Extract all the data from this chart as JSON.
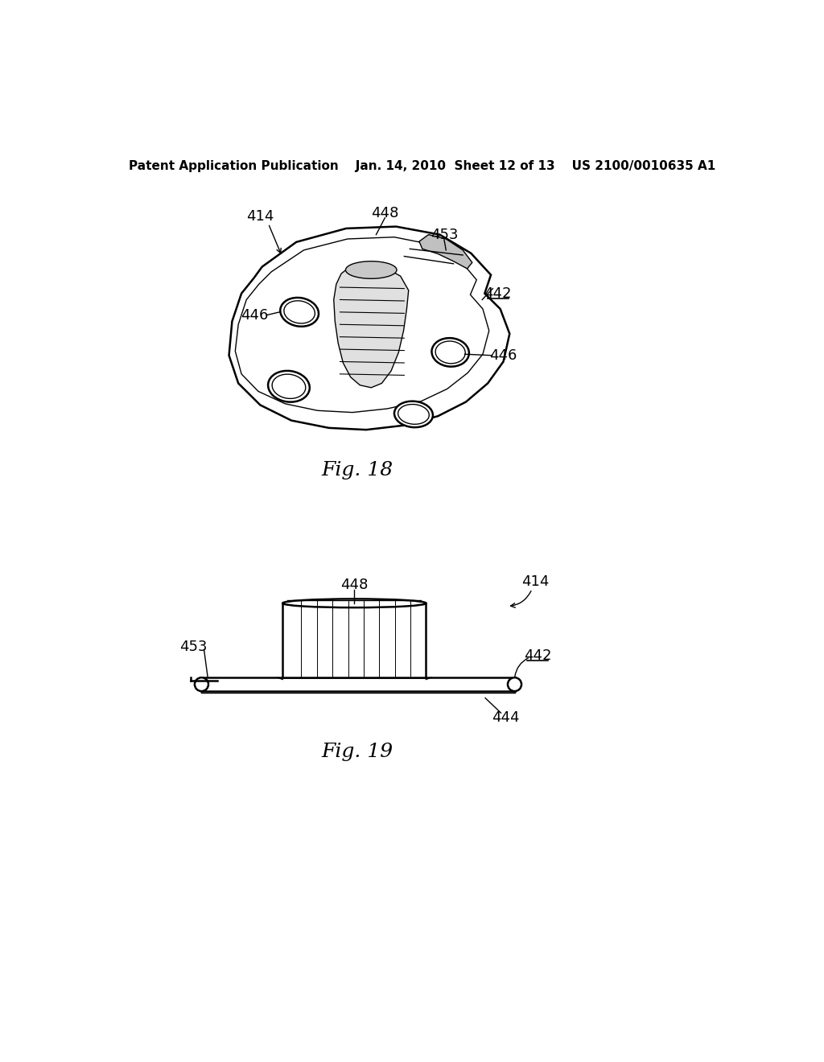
{
  "background_color": "#ffffff",
  "header_text": "Patent Application Publication    Jan. 14, 2010  Sheet 12 of 13    US 2100/0010635 A1",
  "fig18_caption": "Fig. 18",
  "fig19_caption": "Fig. 19",
  "text_color": "#000000",
  "line_color": "#000000",
  "header_fontsize": 11,
  "caption_fontsize": 18,
  "label_fontsize": 13
}
